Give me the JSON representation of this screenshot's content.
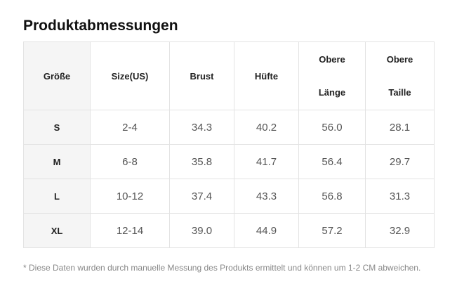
{
  "title": "Produktabmessungen",
  "table": {
    "headers": {
      "size": "Größe",
      "size_us": "Size(US)",
      "bust": "Brust",
      "hip": "Hüfte",
      "top_length_line1": "Obere",
      "top_length_line2": "Länge",
      "top_waist_line1": "Obere",
      "top_waist_line2": "Taille"
    },
    "rows": [
      {
        "size": "S",
        "size_us": "2-4",
        "bust": "34.3",
        "hip": "40.2",
        "top_length": "56.0",
        "top_waist": "28.1"
      },
      {
        "size": "M",
        "size_us": "6-8",
        "bust": "35.8",
        "hip": "41.7",
        "top_length": "56.4",
        "top_waist": "29.7"
      },
      {
        "size": "L",
        "size_us": "10-12",
        "bust": "37.4",
        "hip": "43.3",
        "top_length": "56.8",
        "top_waist": "31.3"
      },
      {
        "size": "XL",
        "size_us": "12-14",
        "bust": "39.0",
        "hip": "44.9",
        "top_length": "57.2",
        "top_waist": "32.9"
      }
    ]
  },
  "footnote": "* Diese Daten wurden durch manuelle Messung des Produkts ermittelt und können um 1-2 CM abweichen."
}
